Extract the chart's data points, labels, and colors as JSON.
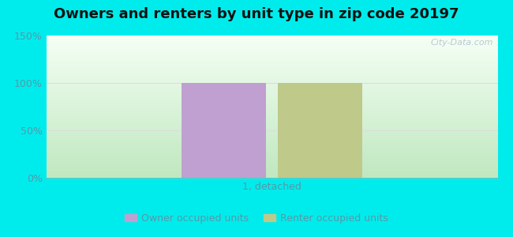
{
  "title": "Owners and renters by unit type in zip code 20197",
  "categories": [
    "1, detached"
  ],
  "owner_values": [
    100
  ],
  "renter_values": [
    100
  ],
  "owner_color": "#c0a0d0",
  "renter_color": "#bec98a",
  "ylim": [
    0,
    150
  ],
  "yticks": [
    0,
    50,
    100,
    150
  ],
  "ytick_labels": [
    "0%",
    "50%",
    "100%",
    "150%"
  ],
  "bar_width": 0.28,
  "outer_bg": "#00ECEC",
  "plot_bg_top": "#f5fff5",
  "plot_bg_bottom": "#c0e8c0",
  "legend_owner": "Owner occupied units",
  "legend_renter": "Renter occupied units",
  "watermark": "City-Data.com",
  "title_fontsize": 13,
  "tick_fontsize": 9,
  "xlabel_fontsize": 9,
  "tick_color": "#5599aa",
  "grid_color": "#dddddd",
  "title_color": "#111111"
}
